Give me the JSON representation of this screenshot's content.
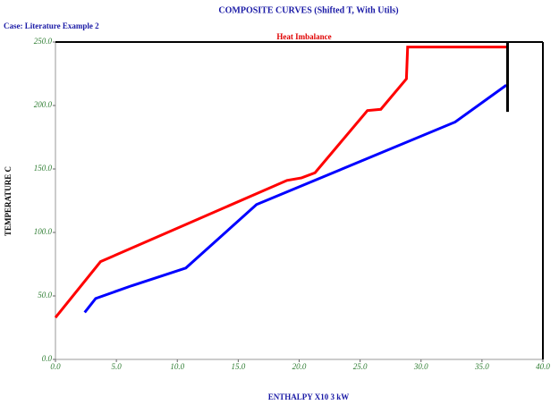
{
  "chart_data": {
    "type": "line",
    "title": "COMPOSITE CURVES (Shifted T, With Utils)",
    "case_label": "Case: Literature Example 2",
    "annotation": "Heat Imbalance",
    "x_label": "ENTHALPY X10 3 kW",
    "y_label": "TEMPERATURE C",
    "xlim": [
      0,
      40
    ],
    "ylim": [
      0,
      250
    ],
    "xticks": [
      {
        "value": 0,
        "label": "0.0"
      },
      {
        "value": 5,
        "label": "5.0"
      },
      {
        "value": 10,
        "label": "10.0"
      },
      {
        "value": 15,
        "label": "15.0"
      },
      {
        "value": 20,
        "label": "20.0"
      },
      {
        "value": 25,
        "label": "25.0"
      },
      {
        "value": 30,
        "label": "30.0"
      },
      {
        "value": 35,
        "label": "35.0"
      },
      {
        "value": 40,
        "label": "40.0"
      }
    ],
    "yticks": [
      {
        "value": 0,
        "label": "0.0"
      },
      {
        "value": 50,
        "label": "50.0"
      },
      {
        "value": 100,
        "label": "100.0"
      },
      {
        "value": 150,
        "label": "150.0"
      },
      {
        "value": 200,
        "label": "200.0"
      },
      {
        "value": 250,
        "label": "250.0"
      }
    ],
    "series": [
      {
        "color": "#ff0000",
        "x": [
          0,
          3.7,
          19,
          20.2,
          21.3,
          25.6,
          26.7,
          28.8,
          28.9,
          34,
          37.1
        ],
        "values": [
          33,
          77,
          141,
          143,
          147,
          196,
          197,
          221,
          246,
          246,
          246
        ]
      },
      {
        "color": "#0000ff",
        "x": [
          2.4,
          3.3,
          6.25,
          10.7,
          16.5,
          32.8,
          37
        ],
        "values": [
          37,
          48,
          58,
          72,
          122,
          187,
          216
        ]
      },
      {
        "color": "#000000",
        "x": [
          37.1,
          37.1
        ],
        "values": [
          250,
          195
        ]
      }
    ]
  }
}
